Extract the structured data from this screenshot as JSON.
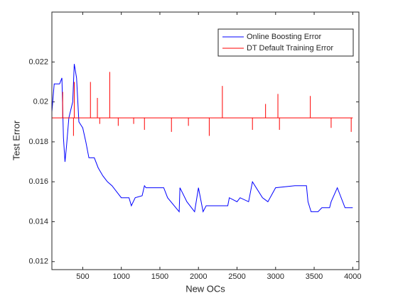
{
  "chart_data": {
    "type": "line",
    "xlabel": "New OCs",
    "ylabel": "Test Error",
    "xlim": [
      100,
      4080
    ],
    "xticks": [
      500,
      1000,
      1500,
      2000,
      2500,
      3000,
      3500,
      4000
    ],
    "ylim": [
      0.0116,
      0.0245
    ],
    "yticks": [
      0.012,
      0.014,
      0.016,
      0.018,
      0.02,
      0.022
    ],
    "legend": "upper right",
    "series": [
      {
        "name": "Online Boosting Error",
        "color": "#0000ff",
        "x": [
          100,
          130,
          200,
          230,
          250,
          270,
          290,
          320,
          370,
          390,
          420,
          450,
          500,
          540,
          580,
          650,
          700,
          760,
          820,
          880,
          940,
          1000,
          1100,
          1130,
          1180,
          1270,
          1300,
          1320,
          1550,
          1600,
          1750,
          1760,
          1850,
          1950,
          2000,
          2060,
          2100,
          2380,
          2400,
          2500,
          2540,
          2650,
          2700,
          2830,
          2900,
          3000,
          3250,
          3400,
          3420,
          3460,
          3550,
          3600,
          3700,
          3720,
          3800,
          3900,
          4000
        ],
        "values": [
          0.0195,
          0.0209,
          0.0209,
          0.0212,
          0.0182,
          0.017,
          0.0178,
          0.0192,
          0.02,
          0.0219,
          0.0212,
          0.019,
          0.0187,
          0.018,
          0.0172,
          0.0172,
          0.0167,
          0.0163,
          0.016,
          0.0158,
          0.0155,
          0.0152,
          0.0152,
          0.0148,
          0.0152,
          0.0153,
          0.0158,
          0.0157,
          0.0157,
          0.0152,
          0.0145,
          0.0157,
          0.015,
          0.0145,
          0.0157,
          0.0145,
          0.0148,
          0.0148,
          0.0152,
          0.015,
          0.0152,
          0.015,
          0.016,
          0.0152,
          0.015,
          0.0157,
          0.0158,
          0.0158,
          0.015,
          0.0145,
          0.0145,
          0.0147,
          0.0147,
          0.015,
          0.0157,
          0.0147,
          0.0147
        ]
      },
      {
        "name": "DT Default Training Error",
        "color": "#ff0000",
        "x": [
          100,
          240,
          240,
          240,
          380,
          380,
          380,
          390,
          390,
          390,
          600,
          600,
          600,
          690,
          690,
          690,
          720,
          720,
          720,
          850,
          850,
          850,
          960,
          960,
          960,
          1160,
          1160,
          1160,
          1300,
          1300,
          1300,
          1650,
          1650,
          1650,
          1870,
          1870,
          1870,
          2140,
          2140,
          2140,
          2310,
          2310,
          2310,
          2700,
          2700,
          2700,
          2870,
          2870,
          2870,
          3030,
          3030,
          3030,
          3050,
          3050,
          3050,
          3450,
          3450,
          3450,
          3720,
          3720,
          3720,
          3980,
          3980,
          3980,
          4000
        ],
        "values": [
          0.0192,
          0.0192,
          0.0205,
          0.0192,
          0.0192,
          0.0183,
          0.0192,
          0.0192,
          0.021,
          0.0192,
          0.0192,
          0.021,
          0.0192,
          0.0192,
          0.0202,
          0.0192,
          0.0192,
          0.0189,
          0.0192,
          0.0192,
          0.0215,
          0.0192,
          0.0192,
          0.0188,
          0.0192,
          0.0192,
          0.0189,
          0.0192,
          0.0192,
          0.0186,
          0.0192,
          0.0192,
          0.0185,
          0.0192,
          0.0192,
          0.0188,
          0.0192,
          0.0192,
          0.0183,
          0.0192,
          0.0192,
          0.0208,
          0.0192,
          0.0192,
          0.0186,
          0.0192,
          0.0192,
          0.0199,
          0.0192,
          0.0192,
          0.0204,
          0.0192,
          0.0192,
          0.0186,
          0.0192,
          0.0192,
          0.0203,
          0.0192,
          0.0192,
          0.0187,
          0.0192,
          0.0192,
          0.0185,
          0.0192,
          0.0192
        ]
      }
    ]
  }
}
